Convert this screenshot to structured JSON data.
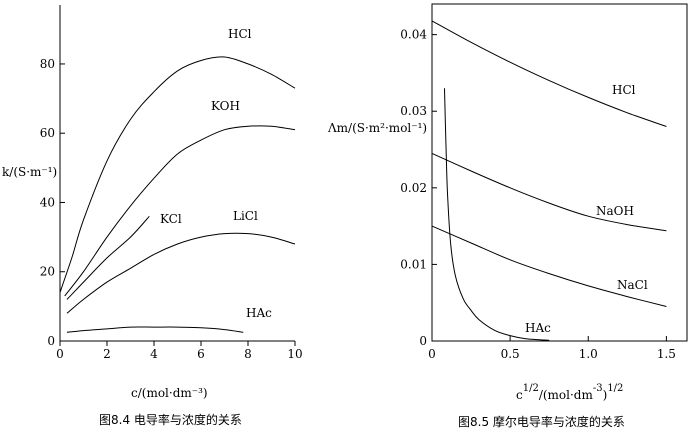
{
  "chart_data": [
    {
      "type": "line",
      "ylabel": "k/(S·m⁻¹)",
      "xlabel": "c/(mol·dm⁻³)",
      "caption": "图8.4 电导率与浓度的关系",
      "xlim": [
        0,
        10
      ],
      "ylim": [
        0,
        95
      ],
      "xticks": [
        "0",
        "2",
        "4",
        "6",
        "8",
        "10"
      ],
      "yticks": [
        "0",
        "20",
        "40",
        "60",
        "80"
      ],
      "series": [
        {
          "name": "HCl",
          "x": [
            0,
            0.5,
            1,
            2,
            3,
            4,
            5,
            6,
            7,
            8,
            9,
            10
          ],
          "y": [
            14,
            24,
            35,
            52,
            64,
            72,
            78,
            81,
            82,
            80,
            77,
            73
          ]
        },
        {
          "name": "KOH",
          "x": [
            0.2,
            1,
            2,
            3,
            4,
            5,
            6,
            7,
            8,
            9,
            10
          ],
          "y": [
            13,
            20,
            30,
            39,
            47,
            54,
            58,
            61,
            62,
            62,
            61
          ]
        },
        {
          "name": "KCl",
          "x": [
            0.3,
            1,
            2,
            3,
            3.8
          ],
          "y": [
            12,
            17,
            24,
            30,
            36
          ]
        },
        {
          "name": "LiCl",
          "x": [
            0.3,
            1,
            2,
            3,
            4,
            5,
            6,
            7,
            8,
            9,
            10
          ],
          "y": [
            8,
            12,
            17,
            21,
            25,
            28,
            30,
            31,
            31,
            30,
            28
          ]
        },
        {
          "name": "HAc",
          "x": [
            0.3,
            1,
            2,
            3,
            4,
            5,
            6,
            7,
            7.8
          ],
          "y": [
            2.5,
            3,
            3.5,
            4,
            4,
            4,
            3.8,
            3.3,
            2.5
          ]
        }
      ]
    },
    {
      "type": "line",
      "ylabel": "Λm/(S·m²·mol⁻¹)",
      "xlabel_base": "c",
      "xlabel_exp": "1/2",
      "xlabel_unit": "/(mol·dm",
      "xlabel_unit_exp": "-3",
      "xlabel_close": ")",
      "xlabel_close_exp": "1/2",
      "caption": "图8.5 摩尔电导率与浓度的关系",
      "xlim": [
        0,
        1.6
      ],
      "ylim": [
        0,
        0.044
      ],
      "xticks": [
        "0",
        "0.5",
        "1.0",
        "1.5"
      ],
      "yticks": [
        "0",
        "0.01",
        "0.02",
        "0.03",
        "0.04"
      ],
      "series": [
        {
          "name": "HCl",
          "x": [
            0,
            0.25,
            0.5,
            0.75,
            1.0,
            1.25,
            1.5
          ],
          "y": [
            0.0418,
            0.039,
            0.0364,
            0.034,
            0.0318,
            0.0298,
            0.028
          ]
        },
        {
          "name": "NaOH",
          "x": [
            0,
            0.25,
            0.5,
            0.75,
            1.0,
            1.25,
            1.5
          ],
          "y": [
            0.0245,
            0.0222,
            0.02,
            0.018,
            0.0163,
            0.0152,
            0.0144
          ]
        },
        {
          "name": "NaCl",
          "x": [
            0,
            0.25,
            0.5,
            0.75,
            1.0,
            1.25,
            1.5
          ],
          "y": [
            0.015,
            0.0128,
            0.0106,
            0.0088,
            0.0072,
            0.0058,
            0.0045
          ]
        },
        {
          "name": "HAc",
          "x": [
            0.08,
            0.09,
            0.1,
            0.12,
            0.15,
            0.2,
            0.25,
            0.3,
            0.4,
            0.5,
            0.6,
            0.75
          ],
          "y": [
            0.033,
            0.025,
            0.019,
            0.0125,
            0.0085,
            0.0055,
            0.004,
            0.0028,
            0.0014,
            0.0007,
            0.0003,
            0.0001
          ]
        }
      ]
    }
  ]
}
